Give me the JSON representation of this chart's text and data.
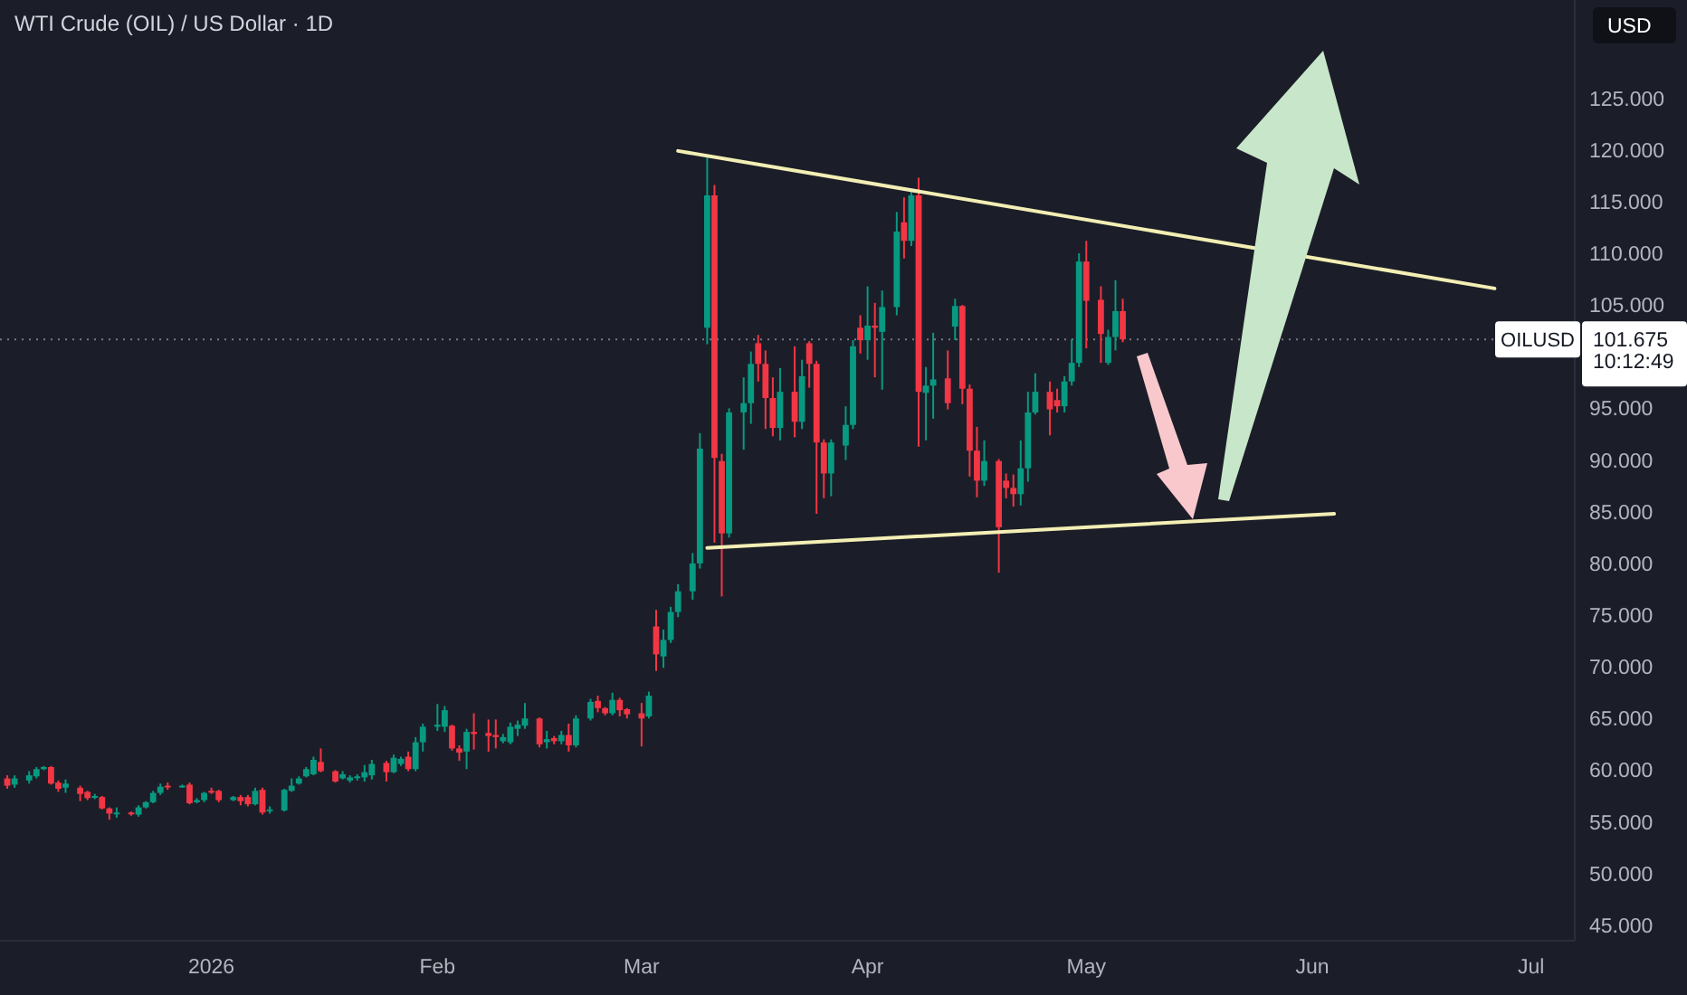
{
  "chart_data": {
    "type": "candlestick",
    "title": "WTI Crude (OIL) / US Dollar · 1D",
    "x": [
      "2025-12-04",
      "2025-12-05",
      "2025-12-07",
      "2025-12-08",
      "2025-12-09",
      "2025-12-10",
      "2025-12-11",
      "2025-12-12",
      "2025-12-14",
      "2025-12-15",
      "2025-12-16",
      "2025-12-17",
      "2025-12-18",
      "2025-12-19",
      "2025-12-21",
      "2025-12-22",
      "2025-12-23",
      "2025-12-24",
      "2025-12-25",
      "2025-12-26",
      "2025-12-28",
      "2025-12-29",
      "2025-12-30",
      "2025-12-31",
      "2026-01-01",
      "2026-01-02",
      "2026-01-04",
      "2026-01-05",
      "2026-01-06",
      "2026-01-07",
      "2026-01-08",
      "2026-01-09",
      "2026-01-11",
      "2026-01-12",
      "2026-01-13",
      "2026-01-14",
      "2026-01-15",
      "2026-01-16",
      "2026-01-18",
      "2026-01-19",
      "2026-01-20",
      "2026-01-21",
      "2026-01-22",
      "2026-01-23",
      "2026-01-25",
      "2026-01-26",
      "2026-01-27",
      "2026-01-28",
      "2026-01-29",
      "2026-01-30",
      "2026-02-01",
      "2026-02-02",
      "2026-02-03",
      "2026-02-04",
      "2026-02-05",
      "2026-02-06",
      "2026-02-08",
      "2026-02-09",
      "2026-02-10",
      "2026-02-11",
      "2026-02-12",
      "2026-02-13",
      "2026-02-15",
      "2026-02-16",
      "2026-02-17",
      "2026-02-18",
      "2026-02-19",
      "2026-02-20",
      "2026-02-22",
      "2026-02-23",
      "2026-02-24",
      "2026-02-25",
      "2026-02-26",
      "2026-02-27",
      "2026-03-01",
      "2026-03-02",
      "2026-03-03",
      "2026-03-04",
      "2026-03-05",
      "2026-03-06",
      "2026-03-08",
      "2026-03-09",
      "2026-03-10",
      "2026-03-11",
      "2026-03-12",
      "2026-03-13",
      "2026-03-15",
      "2026-03-16",
      "2026-03-17",
      "2026-03-18",
      "2026-03-19",
      "2026-03-20",
      "2026-03-22",
      "2026-03-23",
      "2026-03-24",
      "2026-03-25",
      "2026-03-26",
      "2026-03-27",
      "2026-03-29",
      "2026-03-30",
      "2026-03-31",
      "2026-04-01",
      "2026-04-02",
      "2026-04-03",
      "2026-04-05",
      "2026-04-06",
      "2026-04-07",
      "2026-04-08",
      "2026-04-09",
      "2026-04-10",
      "2026-04-12",
      "2026-04-13",
      "2026-04-14",
      "2026-04-15",
      "2026-04-16",
      "2026-04-17",
      "2026-04-19",
      "2026-04-20",
      "2026-04-21",
      "2026-04-22",
      "2026-04-23",
      "2026-04-24",
      "2026-04-26",
      "2026-04-27",
      "2026-04-28",
      "2026-04-29",
      "2026-04-30",
      "2026-05-01",
      "2026-05-03",
      "2026-05-04",
      "2026-05-05",
      "2026-05-06"
    ],
    "ohlc": [
      [
        59.2,
        59.5,
        58.2,
        58.5
      ],
      [
        58.6,
        59.5,
        58.3,
        59.2
      ],
      [
        59.0,
        59.9,
        58.7,
        59.5
      ],
      [
        59.4,
        60.3,
        59.2,
        60.1
      ],
      [
        60.1,
        60.4,
        60.0,
        60.3
      ],
      [
        60.3,
        60.4,
        58.6,
        58.7
      ],
      [
        58.8,
        59.0,
        57.9,
        58.2
      ],
      [
        58.3,
        59.1,
        57.8,
        58.7
      ],
      [
        58.3,
        58.5,
        57.0,
        57.7
      ],
      [
        57.9,
        58.0,
        57.1,
        57.3
      ],
      [
        57.4,
        57.7,
        57.2,
        57.5
      ],
      [
        57.4,
        57.5,
        56.2,
        56.3
      ],
      [
        56.3,
        56.4,
        55.2,
        55.8
      ],
      [
        55.8,
        56.4,
        55.4,
        55.9
      ],
      [
        55.9,
        56.0,
        55.6,
        55.8
      ],
      [
        55.7,
        56.6,
        55.5,
        56.4
      ],
      [
        56.4,
        57.0,
        56.3,
        56.9
      ],
      [
        56.9,
        58.0,
        56.8,
        57.8
      ],
      [
        57.8,
        58.7,
        57.6,
        58.4
      ],
      [
        58.5,
        58.8,
        58.1,
        58.4
      ],
      [
        58.4,
        58.6,
        58.3,
        58.5
      ],
      [
        58.6,
        58.8,
        56.7,
        56.8
      ],
      [
        56.9,
        57.3,
        56.8,
        57.1
      ],
      [
        57.1,
        57.9,
        56.9,
        57.8
      ],
      [
        58.0,
        58.3,
        57.7,
        57.9
      ],
      [
        58.0,
        58.1,
        56.9,
        57.1
      ],
      [
        57.1,
        57.5,
        57.0,
        57.4
      ],
      [
        57.4,
        57.6,
        56.6,
        57.0
      ],
      [
        57.4,
        57.6,
        56.5,
        56.7
      ],
      [
        56.7,
        58.3,
        56.6,
        58.0
      ],
      [
        58.1,
        58.3,
        55.7,
        55.9
      ],
      [
        56.1,
        56.5,
        55.8,
        56.2
      ],
      [
        56.1,
        58.2,
        56.0,
        58.1
      ],
      [
        58.0,
        59.2,
        57.9,
        58.5
      ],
      [
        58.7,
        59.4,
        58.6,
        59.2
      ],
      [
        59.4,
        60.3,
        59.3,
        60.1
      ],
      [
        59.6,
        61.3,
        59.5,
        61.0
      ],
      [
        60.8,
        62.1,
        59.8,
        59.9
      ],
      [
        59.9,
        60.0,
        58.8,
        58.9
      ],
      [
        59.2,
        59.9,
        59.1,
        59.6
      ],
      [
        59.0,
        59.5,
        58.8,
        59.3
      ],
      [
        59.3,
        59.6,
        59.0,
        59.4
      ],
      [
        59.3,
        60.5,
        58.9,
        59.8
      ],
      [
        59.5,
        61.0,
        59.1,
        60.6
      ],
      [
        60.7,
        60.9,
        58.9,
        59.8
      ],
      [
        59.8,
        61.5,
        59.7,
        61.2
      ],
      [
        60.6,
        61.3,
        60.4,
        61.1
      ],
      [
        61.3,
        61.8,
        59.9,
        60.1
      ],
      [
        60.1,
        63.2,
        59.9,
        62.7
      ],
      [
        62.7,
        64.5,
        61.8,
        64.2
      ],
      [
        64.2,
        66.4,
        63.8,
        64.4
      ],
      [
        64.2,
        66.2,
        63.7,
        65.8
      ],
      [
        64.3,
        64.4,
        61.9,
        62.1
      ],
      [
        62.1,
        62.4,
        60.9,
        61.7
      ],
      [
        61.8,
        64.0,
        60.1,
        63.7
      ],
      [
        63.7,
        65.5,
        62.0,
        63.5
      ],
      [
        63.6,
        64.9,
        61.8,
        63.3
      ],
      [
        63.4,
        64.9,
        62.1,
        63.2
      ],
      [
        62.8,
        63.5,
        62.6,
        63.2
      ],
      [
        62.7,
        64.6,
        62.5,
        64.2
      ],
      [
        64.0,
        64.8,
        63.3,
        64.4
      ],
      [
        64.3,
        66.5,
        64.0,
        65.0
      ],
      [
        65.0,
        65.1,
        62.2,
        62.5
      ],
      [
        62.7,
        63.8,
        62.1,
        63.0
      ],
      [
        63.1,
        63.3,
        62.5,
        62.8
      ],
      [
        62.8,
        63.8,
        62.5,
        63.4
      ],
      [
        63.4,
        64.5,
        61.8,
        62.4
      ],
      [
        62.4,
        65.3,
        62.2,
        65.0
      ],
      [
        65.0,
        66.9,
        64.8,
        66.6
      ],
      [
        66.7,
        67.2,
        65.6,
        66.0
      ],
      [
        66.0,
        66.1,
        65.3,
        65.5
      ],
      [
        65.5,
        67.5,
        65.3,
        66.8
      ],
      [
        66.8,
        67.0,
        65.2,
        65.8
      ],
      [
        65.9,
        66.0,
        65.0,
        65.4
      ],
      [
        65.5,
        66.5,
        62.3,
        65.0
      ],
      [
        65.2,
        67.6,
        65.0,
        67.2
      ],
      [
        73.9,
        75.5,
        69.6,
        71.2
      ],
      [
        71.0,
        73.6,
        69.9,
        72.6
      ],
      [
        72.6,
        75.8,
        72.3,
        75.3
      ],
      [
        75.3,
        78.0,
        74.8,
        77.3
      ],
      [
        77.3,
        81.0,
        76.5,
        80.0
      ],
      [
        80.0,
        92.6,
        79.5,
        91.1
      ],
      [
        102.8,
        119.4,
        101.2,
        115.6
      ],
      [
        115.6,
        116.6,
        82.0,
        90.2
      ],
      [
        89.9,
        90.6,
        76.8,
        82.9
      ],
      [
        82.9,
        95.0,
        82.5,
        94.6
      ],
      [
        94.6,
        98.0,
        91.0,
        95.5
      ],
      [
        95.5,
        100.5,
        93.5,
        99.3
      ],
      [
        101.3,
        102.1,
        97.6,
        99.3
      ],
      [
        99.3,
        100.6,
        93.0,
        96.0
      ],
      [
        96.0,
        98.0,
        92.3,
        93.1
      ],
      [
        93.1,
        98.9,
        91.9,
        96.6
      ],
      [
        96.6,
        101.0,
        92.2,
        93.7
      ],
      [
        93.7,
        99.7,
        93.0,
        98.1
      ],
      [
        101.3,
        101.5,
        97.0,
        99.3
      ],
      [
        99.3,
        99.6,
        84.8,
        91.7
      ],
      [
        91.7,
        92.0,
        86.3,
        88.7
      ],
      [
        88.7,
        92.0,
        86.5,
        91.7
      ],
      [
        91.4,
        95.2,
        90.0,
        93.4
      ],
      [
        93.4,
        101.6,
        93.0,
        101.0
      ],
      [
        102.8,
        104.0,
        100.3,
        101.6
      ],
      [
        101.6,
        106.8,
        99.7,
        103.0
      ],
      [
        103.0,
        105.2,
        98.0,
        102.8
      ],
      [
        102.4,
        106.4,
        96.8,
        104.8
      ],
      [
        104.8,
        114.0,
        104.0,
        112.1
      ],
      [
        113.0,
        115.4,
        109.5,
        111.2
      ],
      [
        111.2,
        116.0,
        110.7,
        115.6
      ],
      [
        115.6,
        117.3,
        91.3,
        96.6
      ],
      [
        96.5,
        99.0,
        91.9,
        97.2
      ],
      [
        97.2,
        102.3,
        94.0,
        97.8
      ],
      [
        97.9,
        100.6,
        94.9,
        95.5
      ],
      [
        102.9,
        105.6,
        101.6,
        104.9
      ],
      [
        104.9,
        105.0,
        95.4,
        96.9
      ],
      [
        96.9,
        97.3,
        88.4,
        90.9
      ],
      [
        90.9,
        93.2,
        86.4,
        88.0
      ],
      [
        88.0,
        91.9,
        87.5,
        89.9
      ],
      [
        89.9,
        90.1,
        79.1,
        83.5
      ],
      [
        88.0,
        88.7,
        86.3,
        87.3
      ],
      [
        87.3,
        88.6,
        85.5,
        86.7
      ],
      [
        86.7,
        91.9,
        85.6,
        89.2
      ],
      [
        89.2,
        96.6,
        87.9,
        94.6
      ],
      [
        94.6,
        98.4,
        94.4,
        96.6
      ],
      [
        96.6,
        97.6,
        92.4,
        94.9
      ],
      [
        95.8,
        96.9,
        94.6,
        95.2
      ],
      [
        95.2,
        98.1,
        94.6,
        97.6
      ],
      [
        97.6,
        101.7,
        97.2,
        99.4
      ],
      [
        99.4,
        110.0,
        99.0,
        109.2
      ],
      [
        109.2,
        111.2,
        100.8,
        105.4
      ],
      [
        105.5,
        106.8,
        99.4,
        102.2
      ],
      [
        99.4,
        102.6,
        99.2,
        101.9
      ],
      [
        101.9,
        107.4,
        100.6,
        104.4
      ],
      [
        104.4,
        105.6,
        101.4,
        101.675
      ]
    ],
    "series": [
      {
        "type": "line",
        "color": "#f3eeb4",
        "x": [
          "2026-03-06",
          "2026-06-26"
        ],
        "values": [
          119.9,
          106.6
        ]
      },
      {
        "type": "line",
        "color": "#f3eeb4",
        "x": [
          "2026-03-10",
          "2026-06-04"
        ],
        "values": [
          81.5,
          84.8
        ]
      }
    ],
    "xlim": [
      "2025-12-03",
      "2026-07-07"
    ],
    "xticks": [
      {
        "value": "2026-01-01",
        "label": "2026"
      },
      {
        "value": "2026-02-01",
        "label": "Feb"
      },
      {
        "value": "2026-03-01",
        "label": "Mar"
      },
      {
        "value": "2026-04-01",
        "label": "Apr"
      },
      {
        "value": "2026-05-01",
        "label": "May"
      },
      {
        "value": "2026-06-01",
        "label": "Jun"
      },
      {
        "value": "2026-07-01",
        "label": "Jul"
      }
    ],
    "ylim": [
      43.5,
      134.5
    ],
    "yticks": [
      {
        "value": 45,
        "label": "45.000"
      },
      {
        "value": 50,
        "label": "50.000"
      },
      {
        "value": 55,
        "label": "55.000"
      },
      {
        "value": 60,
        "label": "60.000"
      },
      {
        "value": 65,
        "label": "65.000"
      },
      {
        "value": 70,
        "label": "70.000"
      },
      {
        "value": 75,
        "label": "75.000"
      },
      {
        "value": 80,
        "label": "80.000"
      },
      {
        "value": 85,
        "label": "85.000"
      },
      {
        "value": 90,
        "label": "90.000"
      },
      {
        "value": 95,
        "label": "95.000"
      },
      {
        "value": 105,
        "label": "105.000"
      },
      {
        "value": 110,
        "label": "110.000"
      },
      {
        "value": 115,
        "label": "115.000"
      },
      {
        "value": 120,
        "label": "120.000"
      },
      {
        "value": 125,
        "label": "125.000"
      }
    ],
    "ref_lines": [
      {
        "axis": "y",
        "value": 101.675,
        "label": "101.675",
        "color": "#787b86",
        "line_style": "dotted"
      }
    ],
    "annotations": [
      "USD",
      "OILUSD",
      "10:12:49"
    ]
  }
}
